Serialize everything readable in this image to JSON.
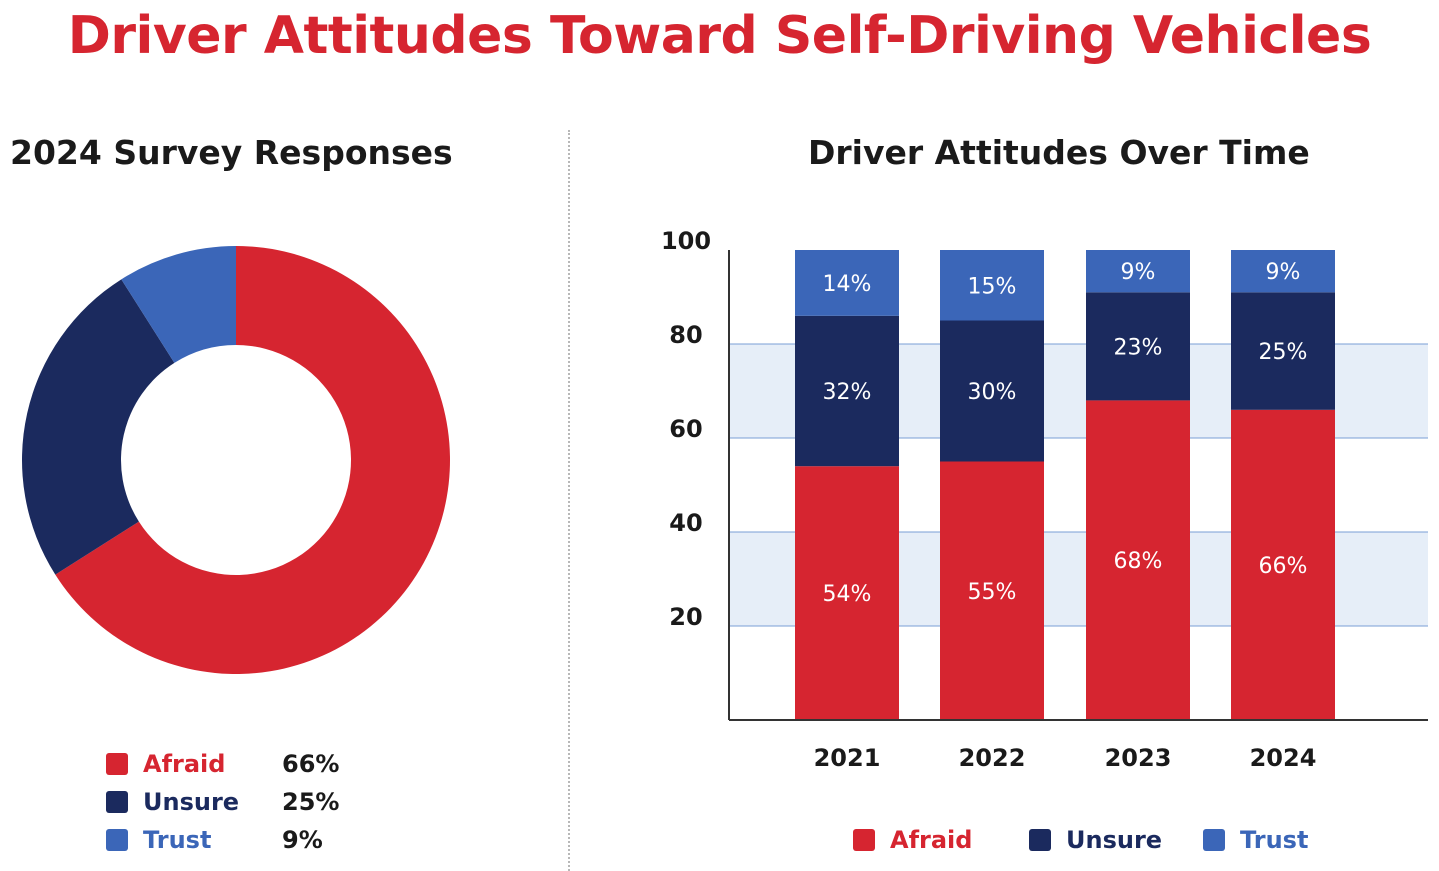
{
  "title": "Driver Attitudes Toward Self-Driving Vehicles",
  "colors": {
    "title_red": "#d62530",
    "afraid": "#d62530",
    "unsure": "#1b2a5e",
    "trust": "#3b66b8",
    "band": "#e6eef8",
    "gridline": "#7a9fd6"
  },
  "chart_data": [
    {
      "type": "pie",
      "variant": "donut",
      "title": "2024 Survey Responses",
      "slices": [
        {
          "label": "Afraid",
          "value": 66,
          "display": "66%"
        },
        {
          "label": "Unsure",
          "value": 25,
          "display": "25%"
        },
        {
          "label": "Trust",
          "value": 9,
          "display": "9%"
        }
      ],
      "legend_placement": "bottom"
    },
    {
      "type": "bar",
      "stacked": true,
      "title": "Driver Attitudes Over Time",
      "categories": [
        "2021",
        "2022",
        "2023",
        "2024"
      ],
      "series": [
        {
          "name": "Afraid",
          "values": [
            54,
            55,
            68,
            66
          ],
          "labels": [
            "54%",
            "55%",
            "68%",
            "66%"
          ]
        },
        {
          "name": "Unsure",
          "values": [
            32,
            30,
            23,
            25
          ],
          "labels": [
            "32%",
            "30%",
            "23%",
            "25%"
          ]
        },
        {
          "name": "Trust",
          "values": [
            14,
            15,
            9,
            9
          ],
          "labels": [
            "14%",
            "15%",
            "9%",
            "9%"
          ]
        }
      ],
      "ylim": [
        0,
        100
      ],
      "yticks": [
        20,
        40,
        60,
        80,
        100
      ],
      "legend_placement": "bottom"
    }
  ]
}
